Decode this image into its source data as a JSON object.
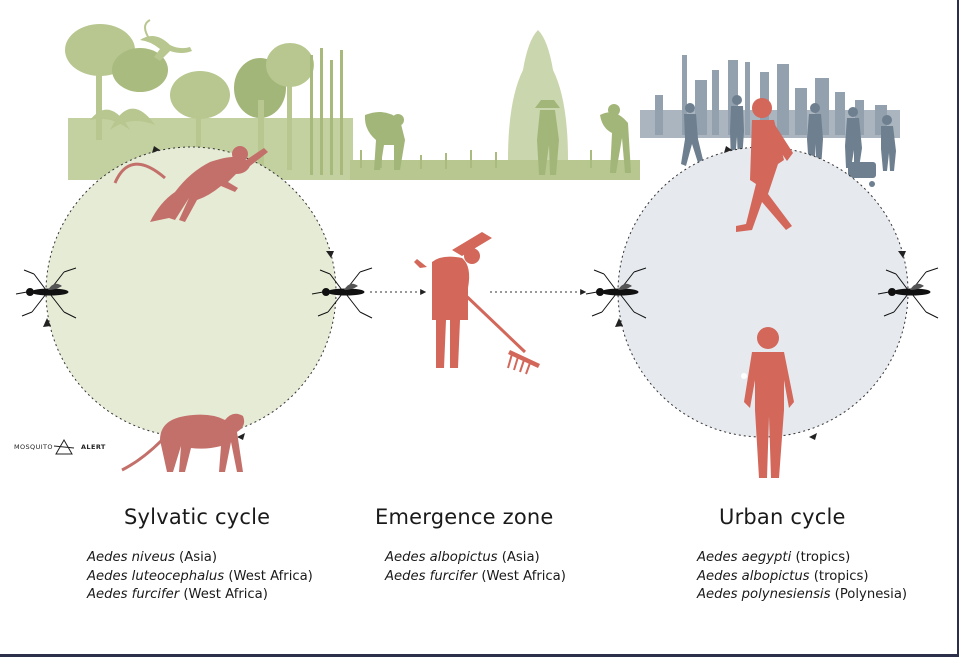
{
  "sections": [
    {
      "title": "Sylvatic cycle",
      "species": [
        {
          "name": "Aedes niveus",
          "region": " (Asia)"
        },
        {
          "name": "Aedes luteocephalus",
          "region": " (West Africa)"
        },
        {
          "name": "Aedes furcifer",
          "region": " (West Africa)"
        }
      ]
    },
    {
      "title": "Emergence zone",
      "species": [
        {
          "name": "Aedes albopictus",
          "region": " (Asia)"
        },
        {
          "name": "Aedes furcifer",
          "region": " (West Africa)"
        }
      ]
    },
    {
      "title": "Urban cycle",
      "species": [
        {
          "name": "Aedes aegypti",
          "region": " (tropics)"
        },
        {
          "name": "Aedes albopictus",
          "region": " (tropics)"
        },
        {
          "name": "Aedes polynesiensis",
          "region": " (Polynesia)"
        }
      ]
    }
  ],
  "logo": {
    "word1": "MOSQUITO",
    "word2": "ALERT"
  },
  "colors": {
    "sylvatic_fill": "#e6ebd6",
    "urban_fill": "#e6e9ee",
    "figure_red": "#d2675a",
    "monkey": "#c4706a",
    "forest_green": "#b3c48c",
    "city_gray": "#8a97a4",
    "mosquito": "#111111"
  }
}
